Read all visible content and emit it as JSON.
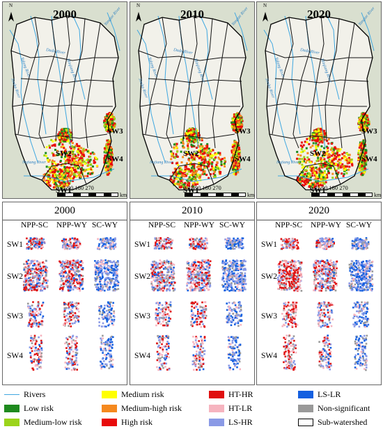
{
  "panels": [
    {
      "year": "2000"
    },
    {
      "year": "2010"
    },
    {
      "year": "2020"
    }
  ],
  "map": {
    "north": "N",
    "sub_watersheds": [
      "SW1",
      "SW2",
      "SW3",
      "SW4"
    ],
    "rivers": [
      "Jinsha River",
      "Yalong River",
      "Dadu River",
      "Minjiang River",
      "Yangtze River",
      "Nujiang River"
    ],
    "scale": {
      "ticks": "0 45 90   180   270",
      "unit": "km"
    }
  },
  "pattern": {
    "columns": [
      "NPP-SC",
      "NPP-WY",
      "SC-WY"
    ],
    "rows": [
      "SW1",
      "SW2",
      "SW3",
      "SW4"
    ]
  },
  "legend": [
    {
      "label": "Rivers",
      "kind": "line",
      "color": "#3fa7e0"
    },
    {
      "label": "Low risk",
      "kind": "fill",
      "color": "#1e8a1e"
    },
    {
      "label": "Medium-low risk",
      "kind": "fill",
      "color": "#9bd41a"
    },
    {
      "label": "Medium risk",
      "kind": "fill",
      "color": "#ffff00"
    },
    {
      "label": "Medium-high risk",
      "kind": "fill",
      "color": "#f5891e"
    },
    {
      "label": "High risk",
      "kind": "fill",
      "color": "#e80b0b"
    },
    {
      "label": "HT-HR",
      "kind": "fill",
      "color": "#e01010"
    },
    {
      "label": "HT-LR",
      "kind": "fill",
      "color": "#f6b4bf"
    },
    {
      "label": "LS-HR",
      "kind": "fill",
      "color": "#8a9ae6"
    },
    {
      "label": "LS-LR",
      "kind": "fill",
      "color": "#1560e0"
    },
    {
      "label": "Non-significant",
      "kind": "fill",
      "color": "#999999"
    },
    {
      "label": "Sub-watershed",
      "kind": "outline",
      "color": "#000000"
    }
  ]
}
